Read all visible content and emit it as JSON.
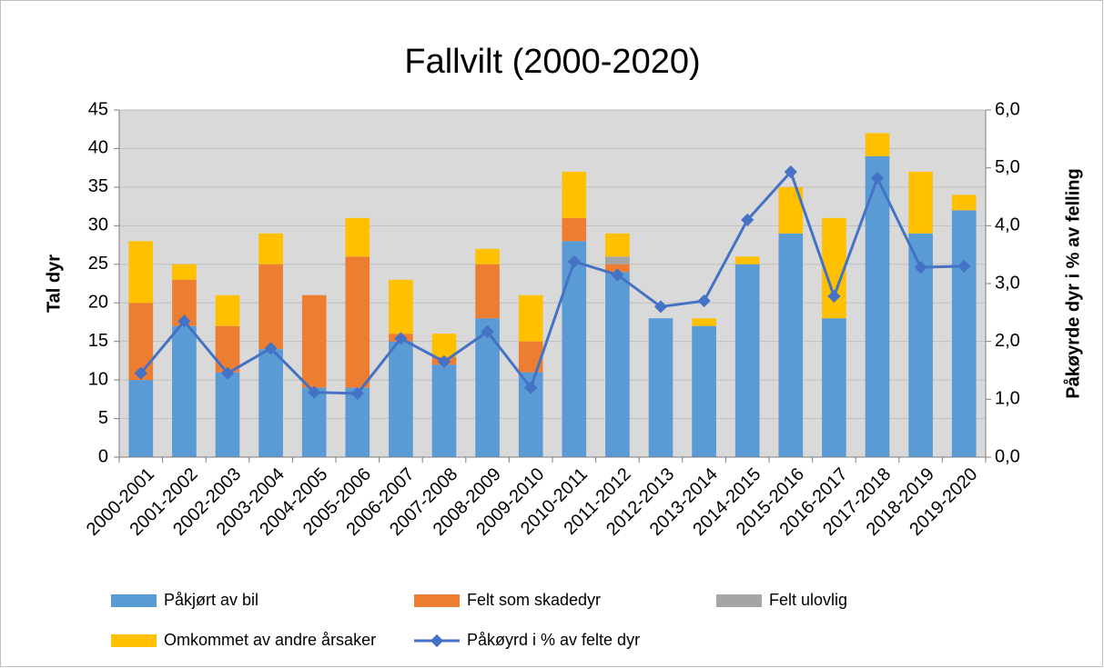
{
  "chart_data": {
    "type": "bar",
    "stacked": true,
    "title": "Fallvilt (2000-2020)",
    "y_label": "Tal dyr",
    "y2_label": "Påkøyrde dyr i  %  av felling",
    "categories": [
      "2000-2001",
      "2001-2002",
      "2002-2003",
      "2003-2004",
      "2004-2005",
      "2005-2006",
      "2006-2007",
      "2007-2008",
      "2008-2009",
      "2009-2010",
      "2010-2011",
      "2011-2012",
      "2012-2013",
      "2013-2014",
      "2014-2015",
      "2015-2016",
      "2016-2017",
      "2017-2018",
      "2018-2019",
      "2019-2020"
    ],
    "series": [
      {
        "name": "Påkjørt av bil",
        "color": "#5b9bd5",
        "values": [
          10,
          17,
          11,
          14,
          9,
          9,
          15,
          12,
          18,
          11,
          28,
          24,
          18,
          17,
          25,
          29,
          18,
          39,
          29,
          32
        ]
      },
      {
        "name": "Felt som skadedyr",
        "color": "#ed7d31",
        "values": [
          10,
          6,
          6,
          11,
          12,
          17,
          1,
          1,
          7,
          4,
          3,
          1,
          0,
          0,
          0,
          0,
          0,
          0,
          0,
          0
        ]
      },
      {
        "name": "Felt ulovlig",
        "color": "#a5a5a5",
        "values": [
          0,
          0,
          0,
          0,
          0,
          0,
          0,
          0,
          0,
          0,
          0,
          1,
          0,
          0,
          0,
          0,
          0,
          0,
          0,
          0
        ]
      },
      {
        "name": "Omkommet av andre årsaker",
        "color": "#ffc000",
        "values": [
          8,
          2,
          4,
          4,
          0,
          5,
          7,
          3,
          2,
          6,
          6,
          3,
          0,
          1,
          1,
          6,
          13,
          3,
          8,
          2
        ]
      },
      {
        "name": "Påkøyrd i % av felte dyr",
        "color": "#4472c4",
        "type": "line",
        "axis": "y2",
        "values": [
          1.45,
          2.35,
          1.45,
          1.88,
          1.12,
          1.1,
          2.05,
          1.65,
          2.17,
          1.2,
          3.38,
          3.15,
          2.6,
          2.7,
          4.1,
          4.93,
          2.78,
          4.82,
          3.28,
          3.3
        ]
      }
    ],
    "ylim": [
      0,
      45
    ],
    "yticks": [
      0,
      5,
      10,
      15,
      20,
      25,
      30,
      35,
      40,
      45
    ],
    "y2lim": [
      0,
      6
    ],
    "y2ticks": [
      {
        "value": 0,
        "label": "0,0"
      },
      {
        "value": 1,
        "label": "1,0"
      },
      {
        "value": 2,
        "label": "2,0"
      },
      {
        "value": 3,
        "label": "3,0"
      },
      {
        "value": 4,
        "label": "4,0"
      },
      {
        "value": 5,
        "label": "5,0"
      },
      {
        "value": 6,
        "label": "6,0"
      }
    ],
    "grid": true,
    "legend": "bottom",
    "plot_background": "#d9d9d9"
  }
}
